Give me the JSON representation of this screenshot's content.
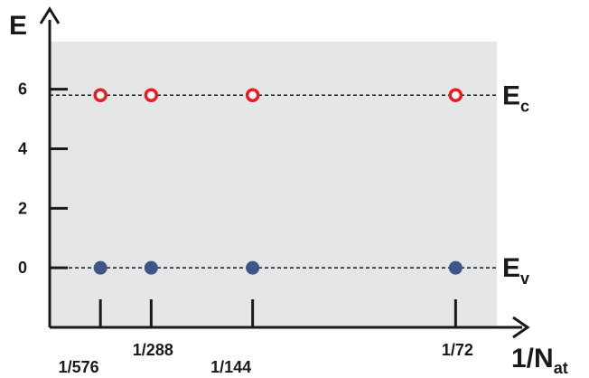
{
  "chart_data": {
    "type": "scatter",
    "xlabel_main": "1/N",
    "xlabel_sub": "at",
    "ylabel": "E",
    "y_ticks": [
      {
        "value": 0,
        "label": "0"
      },
      {
        "value": 2,
        "label": "2"
      },
      {
        "value": 4,
        "label": "4"
      },
      {
        "value": 6,
        "label": "6"
      }
    ],
    "x_ticks": [
      {
        "value": 0.0017361,
        "label": "1/576",
        "placement": "low"
      },
      {
        "value": 0.0034722,
        "label": "1/288",
        "placement": "high"
      },
      {
        "value": 0.0069444,
        "label": "1/144",
        "placement": "low"
      },
      {
        "value": 0.0138889,
        "label": "1/72",
        "placement": "high"
      }
    ],
    "xlim": [
      0,
      0.0153
    ],
    "ylim": [
      -2.0,
      7.6
    ],
    "shaded_region": {
      "ymin": -2.0,
      "ymax": 7.6,
      "color": "#e5e6e8"
    },
    "grid": false,
    "series": [
      {
        "line_label": "E",
        "line_label_sub": "c",
        "marker": "open-circle",
        "color": "#e31e24",
        "reference_y": 5.8,
        "x": [
          0.0017361,
          0.0034722,
          0.0069444,
          0.0138889
        ],
        "y": [
          5.8,
          5.8,
          5.8,
          5.8
        ]
      },
      {
        "line_label": "E",
        "line_label_sub": "v",
        "marker": "filled-circle",
        "color": "#3e5587",
        "reference_y": 0.0,
        "x": [
          0.0017361,
          0.0034722,
          0.0069444,
          0.0138889
        ],
        "y": [
          0.0,
          0.0,
          0.0,
          0.0
        ]
      }
    ]
  }
}
